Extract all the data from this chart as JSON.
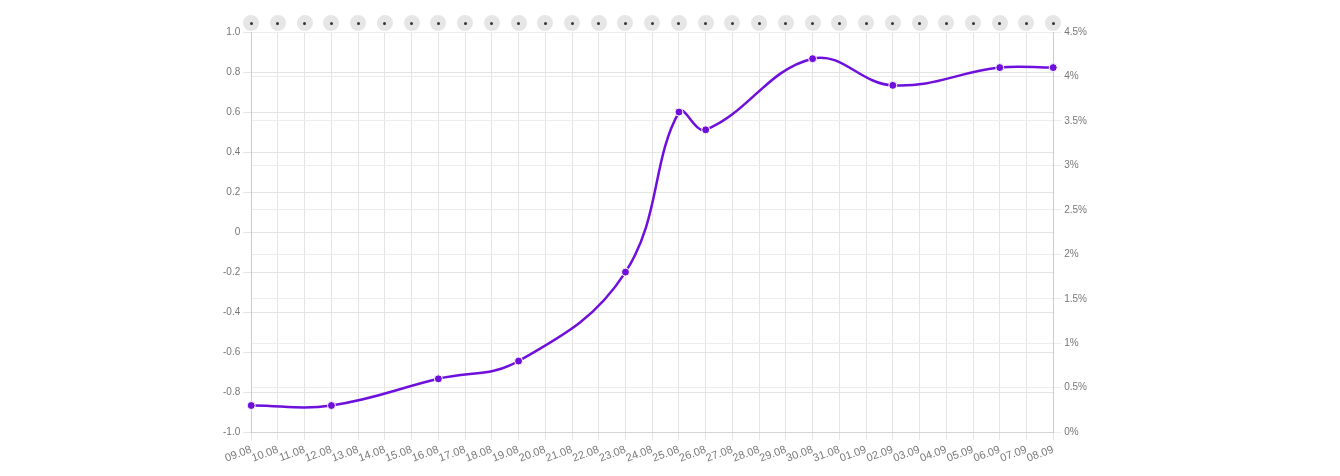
{
  "chart_data": {
    "type": "line",
    "categories": [
      "09.08",
      "10.08",
      "11.08",
      "12.08",
      "13.08",
      "14.08",
      "15.08",
      "16.08",
      "17.08",
      "18.08",
      "19.08",
      "20.08",
      "21.08",
      "22.08",
      "23.08",
      "24.08",
      "25.08",
      "26.08",
      "27.08",
      "28.08",
      "29.08",
      "30.08",
      "31.08",
      "01.09",
      "02.09",
      "03.09",
      "04.09",
      "05.09",
      "06.09",
      "07.09",
      "08.09"
    ],
    "series": [
      {
        "color": "#6f0fdc",
        "axis": "y2",
        "values": [
          0.3,
          null,
          null,
          0.3,
          null,
          null,
          null,
          0.6,
          null,
          null,
          0.8,
          null,
          null,
          null,
          1.8,
          null,
          3.6,
          3.4,
          null,
          null,
          null,
          4.2,
          null,
          null,
          3.9,
          null,
          null,
          null,
          4.1,
          null,
          4.1
        ]
      }
    ],
    "ylim": [
      -1,
      1
    ],
    "yticks": [
      {
        "value": -1,
        "label": "-1.0"
      },
      -0.8,
      -0.6,
      -0.4,
      -0.2,
      0,
      0.2,
      0.4,
      0.6,
      0.8,
      {
        "value": 1,
        "label": "1.0"
      }
    ],
    "y2lim": [
      0,
      4.5
    ],
    "y2ticks": [
      {
        "value": 0,
        "label": "0%"
      },
      {
        "value": 0.5,
        "label": "0.5%"
      },
      {
        "value": 1,
        "label": "1%"
      },
      {
        "value": 1.5,
        "label": "1.5%"
      },
      {
        "value": 2,
        "label": "2%"
      },
      {
        "value": 2.5,
        "label": "2.5%"
      },
      {
        "value": 3,
        "label": "3%"
      },
      {
        "value": 3.5,
        "label": "3.5%"
      },
      {
        "value": 4,
        "label": "4%"
      },
      {
        "value": 4.5,
        "label": "4.5%"
      }
    ],
    "grid": true,
    "legend": false,
    "marker": "circle",
    "line_style": "solid"
  }
}
